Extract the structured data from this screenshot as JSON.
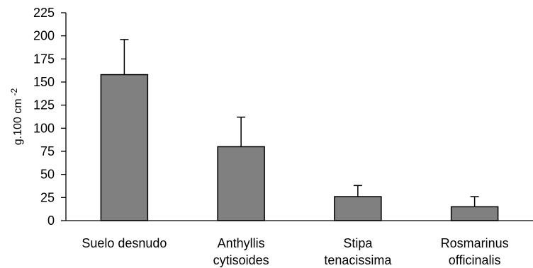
{
  "chart_data": {
    "type": "bar",
    "categories": [
      [
        "Suelo desnudo"
      ],
      [
        "Anthyllis",
        "cytisoides"
      ],
      [
        "Stipa",
        "tenacissima"
      ],
      [
        "Rosmarinus",
        "officinalis"
      ]
    ],
    "values": [
      158,
      80,
      26,
      15
    ],
    "error_upper": [
      196,
      112,
      38,
      26
    ],
    "ylabel": "g.100 cm",
    "ylabel_superscript": "-2",
    "ylim": [
      0,
      225
    ],
    "yticks": [
      "0",
      "25",
      "50",
      "75",
      "100",
      "125",
      "150",
      "175",
      "200",
      "225"
    ],
    "grid": false,
    "bar_color": "#808080",
    "bar_edge_color": "#000000"
  }
}
